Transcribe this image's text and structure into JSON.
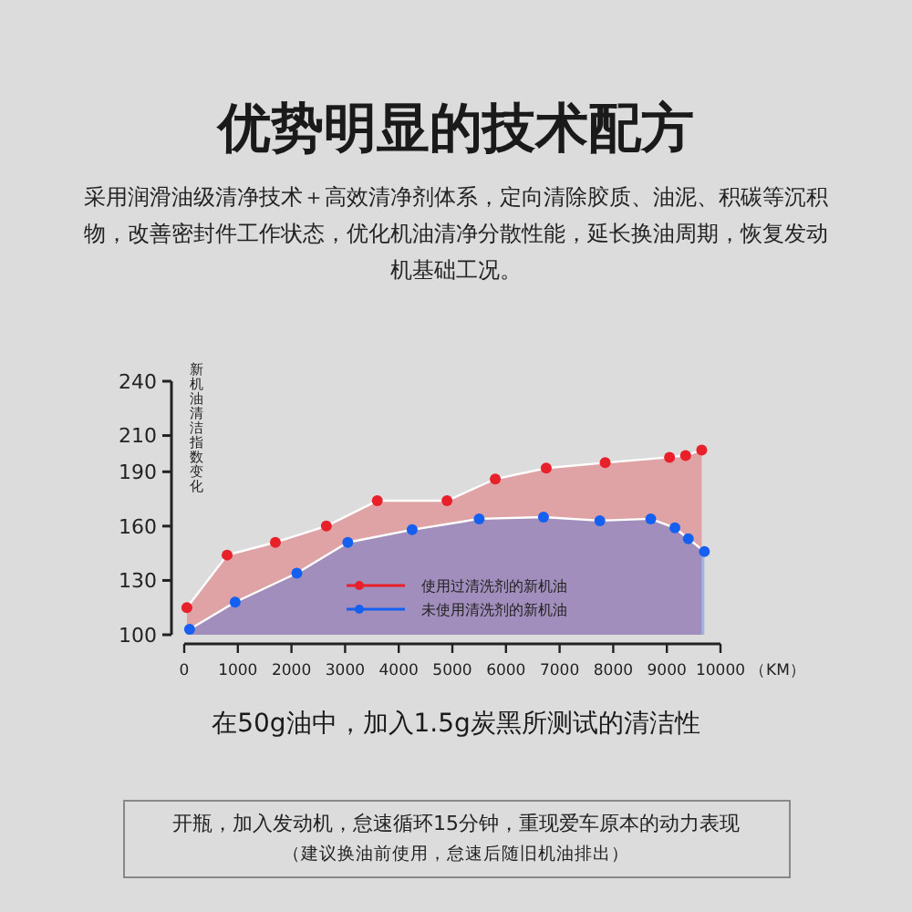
{
  "chart_data": {
    "type": "area",
    "title": "优势明显的技术配方",
    "subtitle": "采用润滑油级清净技术＋高效清净剂体系，定向清除胶质、油泥、积碳等沉积物，改善密封件工作状态，优化机油清净分散性能，延长换油周期，恢复发动机基础工况。",
    "ylabel": "新机油清洁指数变化",
    "xlabel": "（KM）",
    "annotations": [
      "在50g油中，加入1.5g炭黑所测试的清洁性",
      "开瓶，加入发动机，怠速循环15分钟，重现爱车原本的动力表现",
      "（建议换油前使用，怠速后随旧机油排出）"
    ],
    "xlim": [
      0,
      10000
    ],
    "xticks": [
      0,
      1000,
      2000,
      3000,
      4000,
      5000,
      6000,
      7000,
      8000,
      9000,
      10000
    ],
    "ylim": [
      100,
      240
    ],
    "yticks": [
      100,
      130,
      160,
      190,
      210,
      240
    ],
    "marker": "circle",
    "legend": "bottom",
    "grid": false,
    "series": [
      {
        "name": "使用过清洗剂的新机油",
        "color": "#e8202a",
        "x": [
          50,
          800,
          1700,
          2650,
          3600,
          4900,
          5800,
          6750,
          7850,
          9050,
          9350,
          9650
        ],
        "values": [
          115,
          144,
          151,
          160,
          174,
          174,
          186,
          192,
          195,
          198,
          199,
          202
        ]
      },
      {
        "name": "未使用清洗剂的新机油",
        "color": "#1560f0",
        "x": [
          100,
          950,
          2100,
          3050,
          4250,
          5500,
          6700,
          7750,
          8700,
          9150,
          9400,
          9700
        ],
        "values": [
          103,
          118,
          134,
          151,
          158,
          164,
          165,
          163,
          164,
          159,
          153,
          146
        ]
      }
    ]
  }
}
